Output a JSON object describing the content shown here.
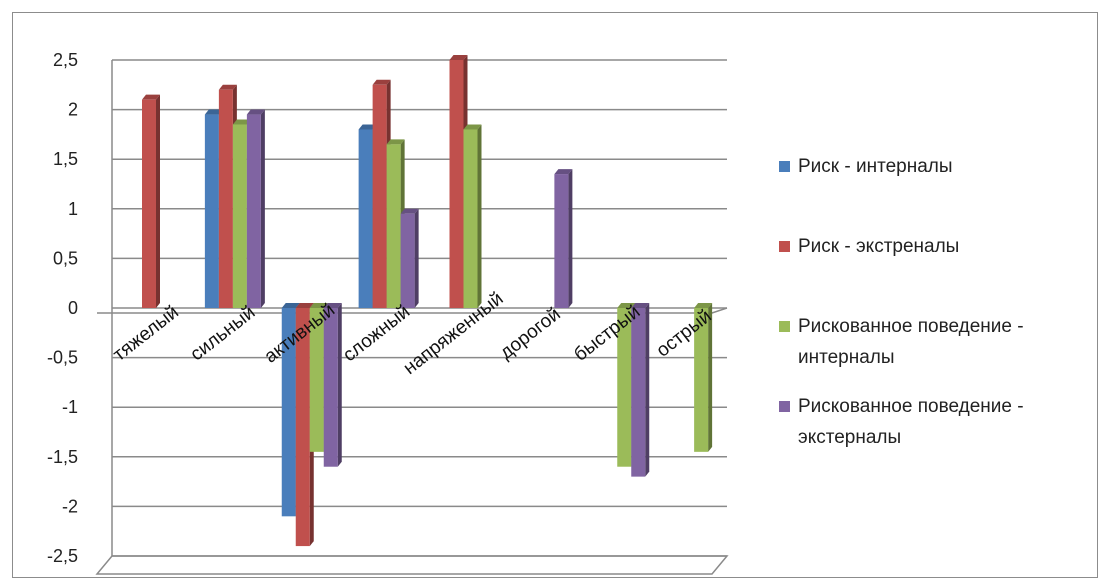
{
  "chart_data": {
    "type": "bar",
    "categories": [
      "тяжелый",
      "сильный",
      "активный",
      "сложный",
      "напряженный",
      "дорогой",
      "быстрый",
      "острый"
    ],
    "series": [
      {
        "name": "Риск - интерналы",
        "color": "#4a7ebb",
        "values": [
          0,
          1.95,
          -2.1,
          1.8,
          0,
          0,
          0,
          0
        ]
      },
      {
        "name": "Риск - экстреналы",
        "color": "#c0504d",
        "values": [
          2.1,
          2.2,
          -2.4,
          2.25,
          2.5,
          0,
          0,
          0
        ]
      },
      {
        "name": "Рискованное поведение - интерналы",
        "color": "#9bbb59",
        "values": [
          0,
          1.85,
          -1.45,
          1.65,
          1.8,
          0,
          -1.6,
          -1.45
        ]
      },
      {
        "name": "Рискованное поведение - экстерналы",
        "color": "#8064a2",
        "values": [
          0,
          1.95,
          -1.6,
          0.95,
          0,
          1.35,
          -1.7,
          0
        ]
      }
    ],
    "ylim": [
      -2.5,
      2.5
    ],
    "yticks": [
      "2,5",
      "2",
      "1,5",
      "1",
      "0,5",
      "0",
      "-0,5",
      "-1",
      "-1,5",
      "-2",
      "-2,5"
    ],
    "grid": true,
    "legend_position": "right"
  }
}
